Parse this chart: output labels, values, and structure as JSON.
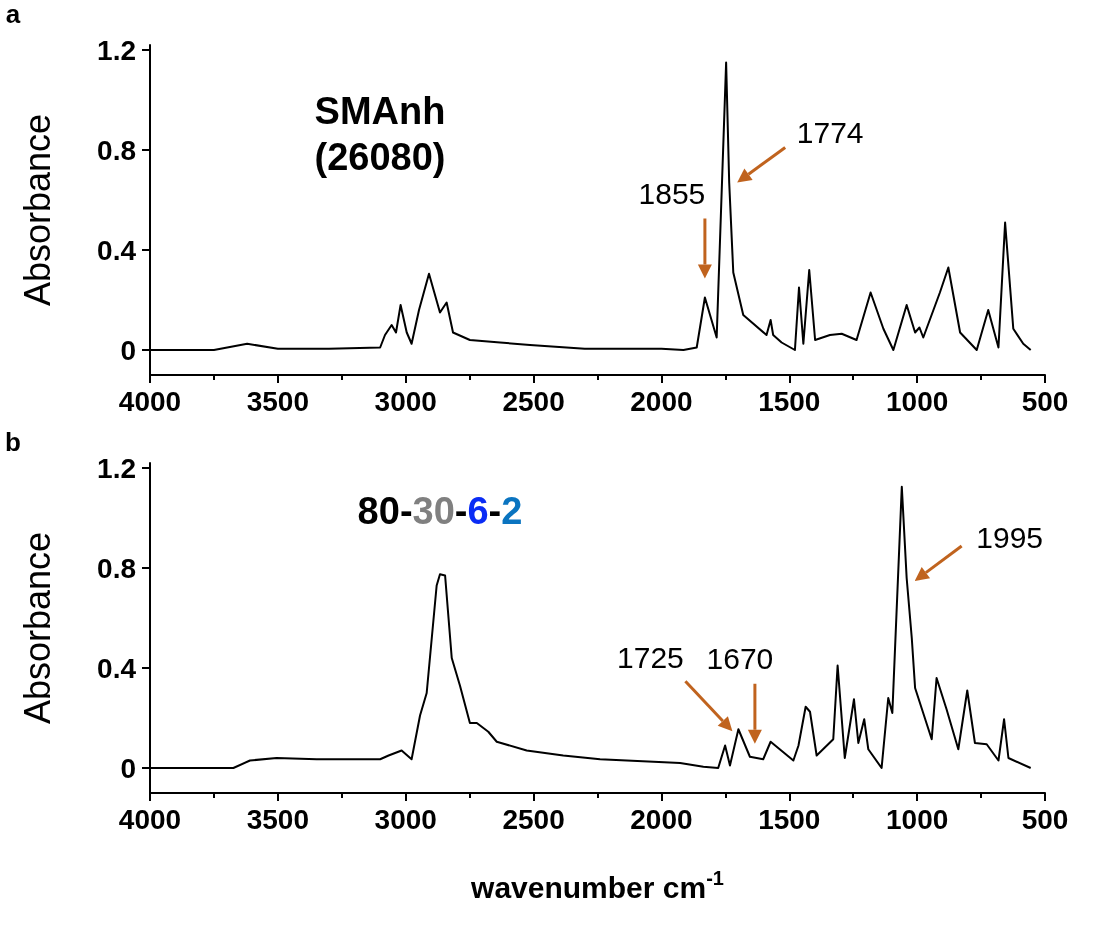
{
  "chart_data": [
    {
      "type": "line",
      "ylabel": "Absorbance",
      "xlim": [
        4000,
        500
      ],
      "xticks": [
        4000,
        3500,
        3000,
        2500,
        2000,
        1500,
        1000,
        500
      ],
      "ylim": [
        -0.1,
        1.22
      ],
      "yticks": [
        0,
        0.4,
        0.8,
        1.2
      ],
      "annotations": [
        "a",
        "SMAnh\n(26080)",
        {
          "text": "1855",
          "x": 1830,
          "y": 0.21
        },
        {
          "text": "1774",
          "x": 1735,
          "y": 0.67
        }
      ],
      "series": [
        {
          "color": "#000000",
          "x": [
            4000,
            3750,
            3620,
            3500,
            3300,
            3100,
            3081,
            3055,
            3038,
            3020,
            2996,
            2977,
            2948,
            2909,
            2866,
            2840,
            2815,
            2749,
            2631,
            2514,
            2300,
            2000,
            1914,
            1862,
            1830,
            1784,
            1747,
            1735,
            1719,
            1680,
            1589,
            1573,
            1563,
            1530,
            1478,
            1462,
            1445,
            1422,
            1399,
            1341,
            1295,
            1237,
            1182,
            1132,
            1093,
            1041,
            1008,
            991,
            976,
            911,
            878,
            832,
            767,
            722,
            682,
            656,
            624,
            585,
            556
          ],
          "values": [
            0,
            0,
            0.025,
            0.005,
            0.005,
            0.01,
            0.06,
            0.1,
            0.07,
            0.18,
            0.07,
            0.025,
            0.16,
            0.305,
            0.15,
            0.19,
            0.07,
            0.04,
            0.03,
            0.02,
            0.005,
            0.005,
            0,
            0.01,
            0.21,
            0.05,
            1.15,
            0.67,
            0.31,
            0.14,
            0.06,
            0.12,
            0.06,
            0.03,
            0,
            0.25,
            0.025,
            0.32,
            0.04,
            0.06,
            0.065,
            0.04,
            0.23,
            0.085,
            0,
            0.18,
            0.07,
            0.09,
            0.05,
            0.23,
            0.33,
            0.07,
            0,
            0.16,
            0.01,
            0.51,
            0.085,
            0.025,
            0
          ]
        }
      ]
    },
    {
      "type": "line",
      "xlabel": "wavenumber cm$^{-1}$",
      "ylabel": "Absorbance",
      "xlim": [
        4000,
        500
      ],
      "xticks": [
        4000,
        3500,
        3000,
        2500,
        2000,
        1500,
        1000,
        500
      ],
      "ylim": [
        -0.1,
        1.22
      ],
      "yticks": [
        0,
        0.4,
        0.8,
        1.2
      ],
      "annotations": [
        "b",
        "80-30-6-2",
        {
          "text": "1725",
          "x": 1699,
          "y": 0.155
        },
        {
          "text": "1670",
          "x": 1654,
          "y": 0.045
        },
        {
          "text": "1995",
          "x": 1041,
          "y": 0.76
        }
      ],
      "series": [
        {
          "color": "#000000",
          "x": [
            4000,
            3765,
            3674,
            3609,
            3505,
            3348,
            3100,
            3067,
            3016,
            2977,
            2944,
            2918,
            2879,
            2866,
            2846,
            2820,
            2788,
            2749,
            2722,
            2677,
            2644,
            2527,
            2384,
            2240,
            1927,
            1836,
            1778,
            1751,
            1732,
            1699,
            1654,
            1602,
            1573,
            1484,
            1464,
            1436,
            1419,
            1393,
            1328,
            1311,
            1283,
            1247,
            1230,
            1207,
            1191,
            1139,
            1113,
            1097,
            1060,
            1041,
            1021,
            1008,
            943,
            924,
            885,
            839,
            804,
            774,
            728,
            682,
            660,
            643,
            556
          ],
          "values": [
            0,
            0,
            0,
            0.03,
            0.04,
            0.035,
            0.035,
            0.05,
            0.07,
            0.035,
            0.21,
            0.3,
            0.73,
            0.775,
            0.77,
            0.44,
            0.33,
            0.18,
            0.18,
            0.145,
            0.105,
            0.07,
            0.05,
            0.035,
            0.02,
            0.005,
            0,
            0.09,
            0.01,
            0.155,
            0.045,
            0.035,
            0.105,
            0.03,
            0.09,
            0.245,
            0.225,
            0.05,
            0.115,
            0.41,
            0.04,
            0.275,
            0.1,
            0.195,
            0.075,
            0,
            0.28,
            0.22,
            1.125,
            0.76,
            0.52,
            0.32,
            0.115,
            0.36,
            0.235,
            0.075,
            0.31,
            0.1,
            0.095,
            0.03,
            0.195,
            0.04,
            0
          ]
        }
      ]
    }
  ]
}
